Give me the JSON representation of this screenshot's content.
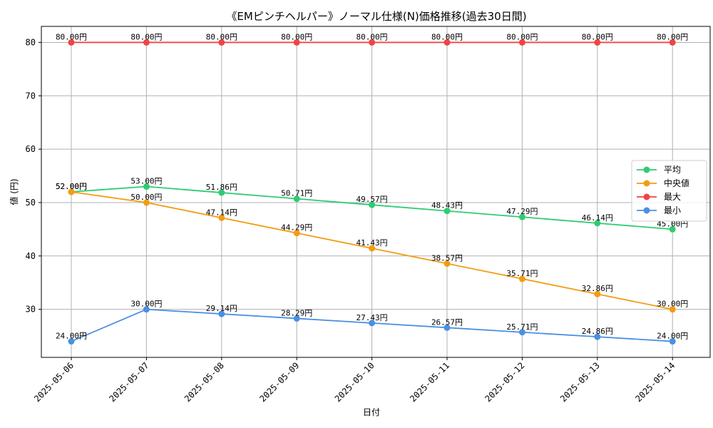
{
  "chart_data": {
    "type": "line",
    "title": "《EMピンチヘルパー》ノーマル仕様(N)価格推移(過去30日間)",
    "xlabel": "日付",
    "ylabel": "値 (円)",
    "value_suffix": "円",
    "categories": [
      "2025-05-06",
      "2025-05-07",
      "2025-05-08",
      "2025-05-09",
      "2025-05-10",
      "2025-05-11",
      "2025-05-12",
      "2025-05-13",
      "2025-05-14"
    ],
    "ylim": [
      21,
      83
    ],
    "yticks": [
      30,
      40,
      50,
      60,
      70,
      80
    ],
    "grid": true,
    "legend_position": "center-right",
    "series": [
      {
        "name": "平均",
        "color": "#2ecc71",
        "values": [
          52.0,
          53.0,
          51.86,
          50.71,
          49.57,
          48.43,
          47.29,
          46.14,
          45.0
        ]
      },
      {
        "name": "中央値",
        "color": "#f39c12",
        "values": [
          52.0,
          50.0,
          47.14,
          44.29,
          41.43,
          38.57,
          35.71,
          32.86,
          30.0
        ]
      },
      {
        "name": "最大",
        "color": "#ef4444",
        "values": [
          80.0,
          80.0,
          80.0,
          80.0,
          80.0,
          80.0,
          80.0,
          80.0,
          80.0
        ]
      },
      {
        "name": "最小",
        "color": "#4a90e2",
        "values": [
          24.0,
          30.0,
          29.14,
          28.29,
          27.43,
          26.57,
          25.71,
          24.86,
          24.0
        ]
      }
    ]
  }
}
